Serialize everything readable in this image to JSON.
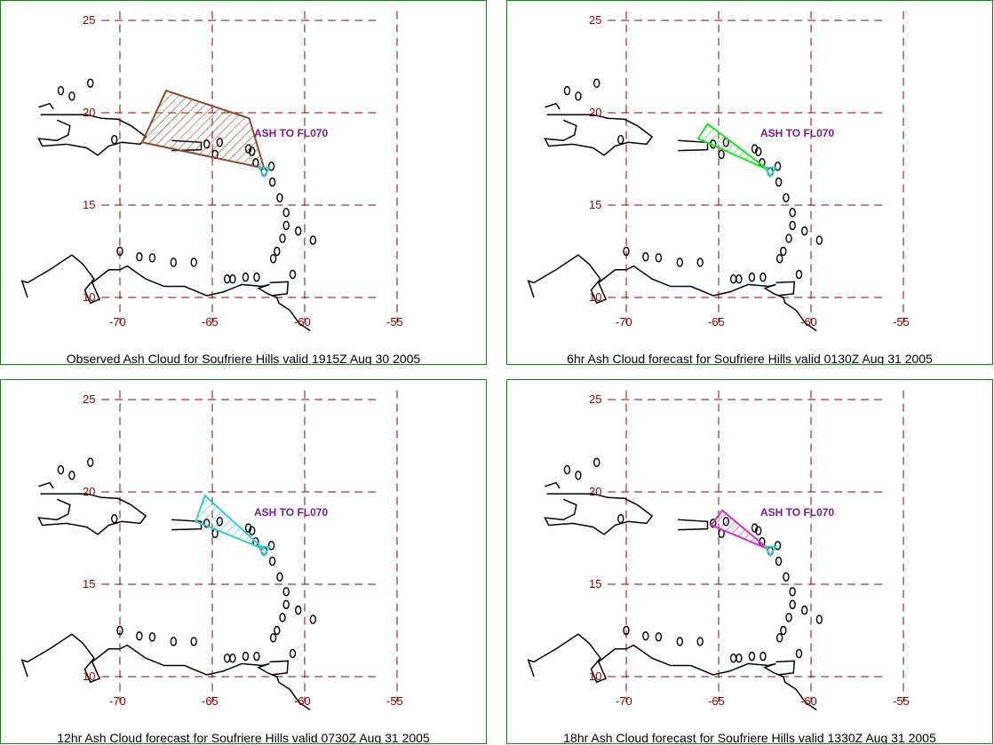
{
  "map": {
    "lat_ticks": [
      "25",
      "20",
      "15",
      "10"
    ],
    "lon_ticks": [
      "-70",
      "-65",
      "-60",
      "-55"
    ],
    "lon_range": [
      -71,
      -56
    ],
    "lat_range": [
      8.5,
      25.5
    ],
    "grid_color": "#8b0000",
    "coast_color": "#000000",
    "vent_color": "#33cccc"
  },
  "panels": [
    {
      "caption": "Observed Ash Cloud for Soufriere  Hills valid 1915Z Aug 30 2005",
      "ash_label": "ASH TO FL070",
      "color": "#8b4a2b",
      "show_label": true,
      "polygon": [
        [
          -67.5,
          21.2
        ],
        [
          -63.0,
          19.7
        ],
        [
          -62.2,
          17.0
        ],
        [
          -68.8,
          18.4
        ]
      ]
    },
    {
      "caption": "6hr Ash Cloud forecast for Soufriere  Hills valid 0130Z Aug 31 2005",
      "ash_label": "ASH TO FL070",
      "color": "#22dd22",
      "show_label": true,
      "polygon": [
        [
          -65.6,
          19.4
        ],
        [
          -62.3,
          16.9
        ],
        [
          -66.1,
          18.6
        ]
      ]
    },
    {
      "caption": "12hr Ash Cloud forecast for Soufriere  Hills valid 0730Z Aug 31 2005",
      "ash_label": "ASH TO FL070",
      "color": "#33cccc",
      "show_label": true,
      "polygon": [
        [
          -65.4,
          19.8
        ],
        [
          -62.2,
          16.9
        ],
        [
          -65.9,
          18.4
        ]
      ]
    },
    {
      "caption": "18hr Ash Cloud forecast for Soufriere  Hills valid 1330Z Aug 31 2005",
      "ash_label": "ASH TO FL070",
      "color": "#cc33cc",
      "show_label": true,
      "polygon": [
        [
          -64.8,
          19.0
        ],
        [
          -62.3,
          16.9
        ],
        [
          -65.4,
          18.2
        ]
      ]
    }
  ]
}
